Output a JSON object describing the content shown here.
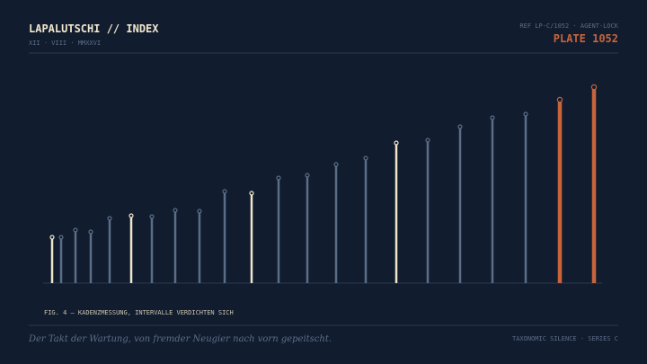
{
  "header": {
    "title": "LAPALUTSCHI // INDEX",
    "date": "XII · VIII · MMXXVI",
    "ref": "REF LP-C/1052 · AGENT-LOCK",
    "plate": "PLATE 1052"
  },
  "chart_data": {
    "type": "lollipop",
    "caption": "FIG. 4 — KADENZMESSUNG, INTERVALLE VERDICHTEN SICH",
    "x": [
      58,
      68,
      84,
      101,
      122,
      146,
      169,
      195,
      222,
      250,
      280,
      310,
      342,
      374,
      407,
      441,
      476,
      512,
      548,
      585,
      623,
      661
    ],
    "values": [
      51,
      51,
      59,
      57,
      72,
      75,
      74,
      81,
      80,
      102,
      100,
      117,
      120,
      132,
      139,
      156,
      159,
      174,
      184,
      188,
      204,
      218
    ],
    "colors": [
      "#efe6cc",
      "#5b6e88",
      "#5b6e88",
      "#5b6e88",
      "#5b6e88",
      "#efe6cc",
      "#5b6e88",
      "#5b6e88",
      "#5b6e88",
      "#5b6e88",
      "#efe6cc",
      "#5b6e88",
      "#5b6e88",
      "#5b6e88",
      "#5b6e88",
      "#efe6cc",
      "#5b6e88",
      "#5b6e88",
      "#5b6e88",
      "#5b6e88",
      "#c8643c",
      "#c8643c"
    ],
    "xlim": [
      48,
      670
    ],
    "ylim": [
      0,
      230
    ]
  },
  "footer": {
    "quote": "Der Takt der Wartung, von fremder Neugier nach vorn gepeitscht.",
    "series": "TAXONOMIC SILENCE · SERIES C"
  }
}
